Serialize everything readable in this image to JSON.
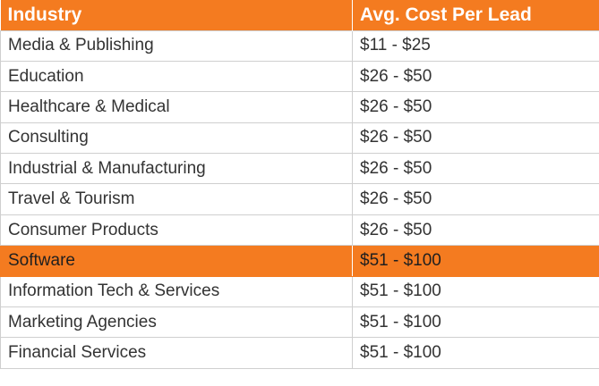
{
  "header": {
    "industry": "Industry",
    "cost": "Avg. Cost Per Lead"
  },
  "rows": [
    {
      "industry": "Media & Publishing",
      "cost": "$11 - $25",
      "highlighted": false
    },
    {
      "industry": "Education",
      "cost": "$26 - $50",
      "highlighted": false
    },
    {
      "industry": "Healthcare & Medical",
      "cost": "$26 - $50",
      "highlighted": false
    },
    {
      "industry": "Consulting",
      "cost": "$26 - $50",
      "highlighted": false
    },
    {
      "industry": "Industrial & Manufacturing",
      "cost": "$26 - $50",
      "highlighted": false
    },
    {
      "industry": "Travel & Tourism",
      "cost": "$26 - $50",
      "highlighted": false
    },
    {
      "industry": "Consumer Products",
      "cost": "$26 - $50",
      "highlighted": false
    },
    {
      "industry": "Software",
      "cost": "$51 - $100",
      "highlighted": true
    },
    {
      "industry": "Information Tech & Services",
      "cost": "$51 - $100",
      "highlighted": false
    },
    {
      "industry": "Marketing Agencies",
      "cost": "$51 - $100",
      "highlighted": false
    },
    {
      "industry": "Financial Services",
      "cost": "$51 - $100",
      "highlighted": false
    }
  ],
  "colors": {
    "accent": "#f47b20",
    "header_text": "#ffffff",
    "body_text": "#333333",
    "grid": "#cfcfcf"
  }
}
